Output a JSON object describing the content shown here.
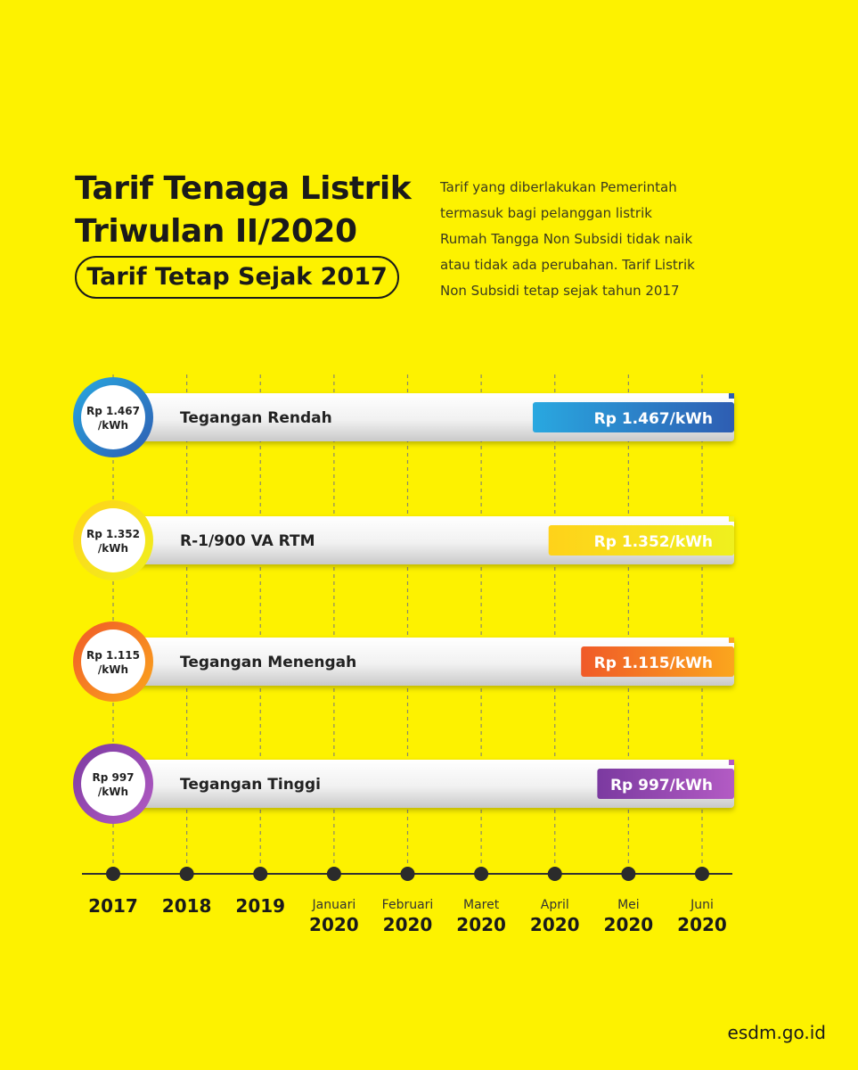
{
  "header": {
    "title_lines": [
      "Tarif Tenaga Listrik",
      "Triwulan II/2020"
    ],
    "badge": "Tarif Tetap Sejak 2017",
    "description_lines": [
      "Tarif yang diberlakukan Pemerintah",
      "termasuk bagi pelanggan listrik",
      "Rumah Tangga Non Subsidi tidak naik",
      "atau tidak ada perubahan. Tarif Listrik",
      "Non Subsidi tetap sejak tahun 2017"
    ]
  },
  "colors": {
    "background": "#fdf200",
    "tegangan_rendah": [
      "#29a8e0",
      "#2e5db2"
    ],
    "r1_900": [
      "#ffd21a",
      "#eff01e"
    ],
    "tegangan_menengah": [
      "#f05a28",
      "#fba61d"
    ],
    "tegangan_tinggi": [
      "#7b3aa0",
      "#b35bc4"
    ]
  },
  "chart_data": {
    "type": "bar",
    "title": "Tarif Tenaga Listrik Triwulan II/2020",
    "timeline": [
      {
        "sub": "",
        "main": "2017"
      },
      {
        "sub": "",
        "main": "2018"
      },
      {
        "sub": "",
        "main": "2019"
      },
      {
        "sub": "Januari",
        "main": "2020"
      },
      {
        "sub": "Februari",
        "main": "2020"
      },
      {
        "sub": "Maret",
        "main": "2020"
      },
      {
        "sub": "April",
        "main": "2020"
      },
      {
        "sub": "Mei",
        "main": "2020"
      },
      {
        "sub": "Juni",
        "main": "2020"
      }
    ],
    "series": [
      {
        "name": "Tegangan Rendah",
        "value": 1467,
        "circle_lines": [
          "Rp 1.467",
          "/kWh"
        ],
        "value_label": "Rp 1.467/kWh",
        "color_key": "tegangan_rendah"
      },
      {
        "name": "R-1/900 VA RTM",
        "value": 1352,
        "circle_lines": [
          "Rp 1.352",
          "/kWh"
        ],
        "value_label": "Rp 1.352/kWh",
        "color_key": "r1_900"
      },
      {
        "name": "Tegangan Menengah",
        "value": 1115,
        "circle_lines": [
          "Rp 1.115",
          "/kWh"
        ],
        "value_label": "Rp 1.115/kWh",
        "color_key": "tegangan_menengah"
      },
      {
        "name": "Tegangan Tinggi",
        "value": 997,
        "circle_lines": [
          "Rp 997",
          "/kWh"
        ],
        "value_label": "Rp 997/kWh",
        "color_key": "tegangan_tinggi"
      }
    ]
  },
  "footer": {
    "url": "esdm.go.id"
  }
}
